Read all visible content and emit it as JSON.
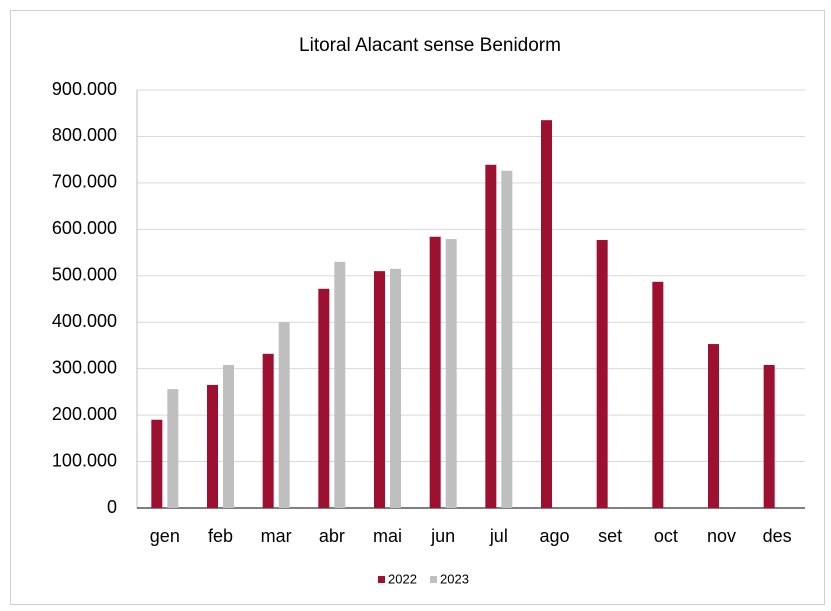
{
  "chart_data": {
    "type": "bar",
    "title": "Litoral Alacant sense Benidorm",
    "categories": [
      "gen",
      "feb",
      "mar",
      "abr",
      "mai",
      "jun",
      "jul",
      "ago",
      "set",
      "oct",
      "nov",
      "des"
    ],
    "series": [
      {
        "name": "2022",
        "color": "#9e1030",
        "values": [
          190000,
          265000,
          332000,
          472000,
          510000,
          584000,
          739000,
          835000,
          577000,
          487000,
          353000,
          308000
        ]
      },
      {
        "name": "2023",
        "color": "#bfbfbf",
        "values": [
          256000,
          308000,
          400000,
          530000,
          515000,
          579000,
          726000,
          null,
          null,
          null,
          null,
          null
        ]
      }
    ],
    "ylim": [
      0,
      900000
    ],
    "yticks": [
      0,
      {
        "value": 100000,
        "label": "100.000"
      },
      {
        "value": 200000,
        "label": "200.000"
      },
      {
        "value": 300000,
        "label": "300.000"
      },
      {
        "value": 400000,
        "label": "400.000"
      },
      {
        "value": 500000,
        "label": "500.000"
      },
      {
        "value": 600000,
        "label": "600.000"
      },
      {
        "value": 700000,
        "label": "700.000"
      },
      {
        "value": 800000,
        "label": "800.000"
      },
      {
        "value": 900000,
        "label": "900.000"
      }
    ],
    "grid": true,
    "legend": "bottom"
  }
}
